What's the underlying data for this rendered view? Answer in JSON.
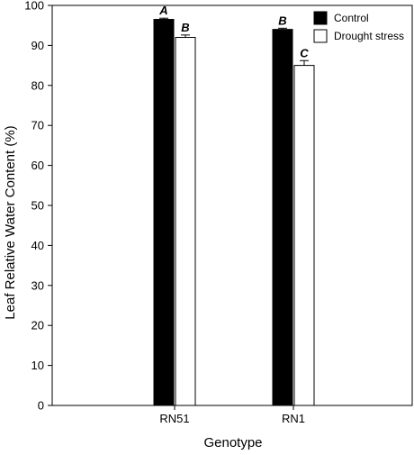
{
  "chart_data": {
    "type": "bar",
    "xlabel": "Genotype",
    "ylabel": "Leaf Relative Water Content (%)",
    "ylim": [
      0,
      100
    ],
    "yticks": [
      0,
      10,
      20,
      30,
      40,
      50,
      60,
      70,
      80,
      90,
      100
    ],
    "categories": [
      "RN51",
      "RN1"
    ],
    "series": [
      {
        "name": "Control",
        "color": "#000000",
        "values": [
          96.5,
          94.0
        ],
        "errors": [
          0.3,
          0.3
        ],
        "letters": [
          "A",
          "B"
        ]
      },
      {
        "name": "Drought stress",
        "color": "#ffffff",
        "values": [
          92.0,
          85.0
        ],
        "errors": [
          0.6,
          1.2
        ],
        "letters": [
          "B",
          "C"
        ]
      }
    ],
    "legend_position": "top-right",
    "grid": false
  }
}
